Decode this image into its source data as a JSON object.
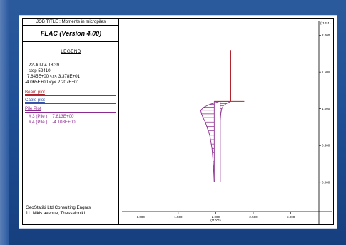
{
  "header": {
    "job_title": "JOB TITLE : Moments in micropiles",
    "program": "FLAC (Version 4.00)"
  },
  "legend": {
    "title": "LEGEND",
    "date": "22-Jul-04 18:39",
    "step": "step 52410",
    "x_range": "7.645E+00 <x< 3.378E+01",
    "y_range": "-4.065E+00 <y< 2.207E+01"
  },
  "sections": {
    "beam": "Beam plot",
    "cable": "Cable plot",
    "pile": "Pile Plot"
  },
  "piles": [
    {
      "label": "# 3 (Pile )",
      "value": "7.813E+00"
    },
    {
      "label": "# 4 (Pile )",
      "value": "-4.108E+00"
    }
  ],
  "footer": {
    "line1": "GeoStatiki Ltd Consulting Engnrs",
    "line2": "11, Nikis avenue, Thessaloniki"
  },
  "colors": {
    "beam": "#b1262e",
    "cable": "#3552a6",
    "pile": "#8b2a8f"
  },
  "chart_data": {
    "type": "line",
    "x_multiplier": "(*10^1)",
    "y_multiplier": "(*10^1)",
    "xlim": [
      0.75,
      3.375
    ],
    "ylim": [
      -0.4,
      2.2
    ],
    "x_ticks": [
      1.0,
      1.5,
      2.0,
      2.5,
      3.0
    ],
    "x_tick_labels": [
      "1.000",
      "1.500",
      "2.000",
      "2.500",
      "3.000"
    ],
    "y_ticks": [
      0.0,
      0.5,
      1.0,
      1.5,
      2.0
    ],
    "y_tick_labels": [
      "0.000",
      "0.500",
      "1.000",
      "1.500",
      "2.000"
    ],
    "beam": {
      "vertical": [
        [
          2.2,
          1.1
        ],
        [
          2.2,
          1.8
        ]
      ],
      "horizontal": [
        [
          1.98,
          1.1
        ],
        [
          2.38,
          1.1
        ]
      ]
    },
    "piles": [
      {
        "name": "# 3 (Pile )",
        "axis_x": 1.98,
        "y_top": 1.1,
        "y_bottom": 0.0,
        "profile": [
          [
            1.1,
            2.05
          ],
          [
            1.06,
            1.92
          ],
          [
            1.02,
            1.84
          ],
          [
            0.98,
            1.8
          ],
          [
            0.93,
            1.81
          ],
          [
            0.88,
            1.83
          ],
          [
            0.82,
            1.86
          ],
          [
            0.76,
            1.88
          ],
          [
            0.7,
            1.9
          ],
          [
            0.64,
            1.92
          ],
          [
            0.58,
            1.93
          ],
          [
            0.52,
            1.94
          ],
          [
            0.46,
            1.95
          ],
          [
            0.4,
            1.955
          ],
          [
            0.34,
            1.96
          ],
          [
            0.28,
            1.965
          ],
          [
            0.22,
            1.97
          ],
          [
            0.16,
            1.972
          ],
          [
            0.1,
            1.975
          ],
          [
            0.04,
            1.978
          ],
          [
            0.0,
            1.98
          ]
        ]
      },
      {
        "name": "# 4 (Pile )",
        "axis_x": 2.06,
        "y_top": 1.1,
        "y_bottom": 0.0,
        "profile": [
          [
            1.1,
            2.2
          ],
          [
            1.07,
            2.14
          ],
          [
            1.04,
            2.1
          ],
          [
            1.0,
            2.08
          ],
          [
            0.95,
            2.07
          ],
          [
            0.9,
            2.065
          ],
          [
            0.84,
            2.06
          ],
          [
            0.78,
            2.06
          ],
          [
            0.72,
            2.06
          ],
          [
            0.66,
            2.06
          ],
          [
            0.6,
            2.06
          ],
          [
            0.54,
            2.06
          ],
          [
            0.48,
            2.06
          ],
          [
            0.42,
            2.06
          ],
          [
            0.36,
            2.06
          ],
          [
            0.3,
            2.06
          ],
          [
            0.24,
            2.06
          ],
          [
            0.18,
            2.06
          ],
          [
            0.12,
            2.06
          ],
          [
            0.06,
            2.06
          ],
          [
            0.0,
            2.06
          ]
        ]
      }
    ]
  }
}
